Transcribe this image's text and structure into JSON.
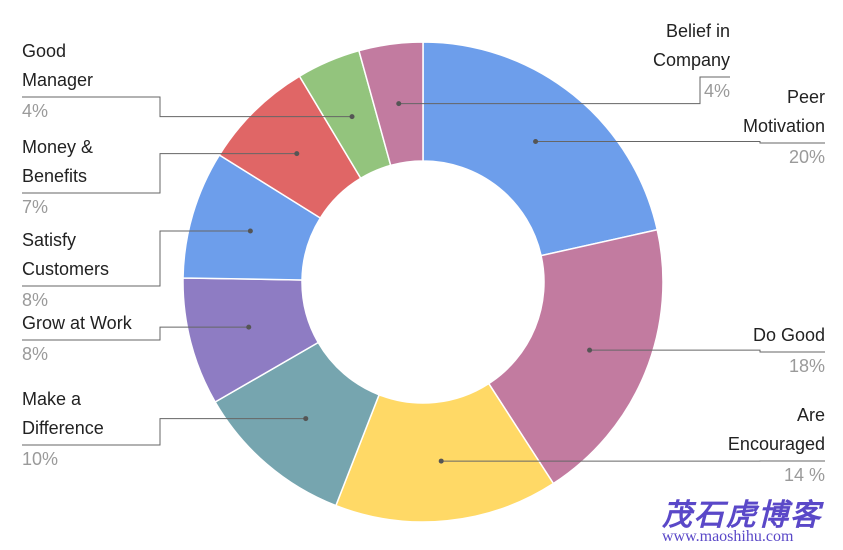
{
  "chart_data": {
    "type": "donut",
    "categories": [
      "Peer Motivation",
      "Do Good",
      "Are Encouraged",
      "Make a Difference",
      "Grow at Work",
      "Satisfy Customers",
      "Money & Benefits",
      "Good Manager",
      "Belief in Company"
    ],
    "values": [
      20,
      18,
      14,
      10,
      8,
      8,
      7,
      4,
      4
    ],
    "value_labels": [
      "20%",
      "18%",
      "14 %",
      "10%",
      "8%",
      "8%",
      "7%",
      "4%",
      "4%"
    ],
    "colors": [
      "#6d9eeb",
      "#c27ba0",
      "#ffd966",
      "#76a5af",
      "#8e7cc3",
      "#6d9eeb",
      "#e06666",
      "#93c47d",
      "#c27ba0"
    ]
  },
  "watermark": {
    "title": "茂石虎博客",
    "url": "www.maoshihu.com"
  }
}
